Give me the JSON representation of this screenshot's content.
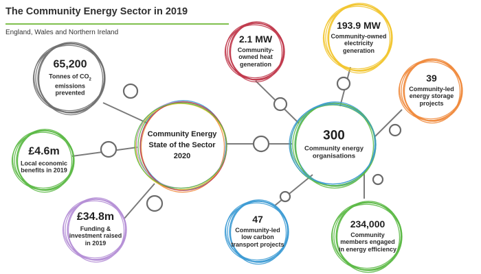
{
  "header": {
    "title": "The Community Energy Sector in 2019",
    "subtitle": "England, Wales and Northern Ireland"
  },
  "hub_left": {
    "line1": "Community Energy",
    "line2": "State of the Sector",
    "line3": "2020"
  },
  "hub_right": {
    "value": "300",
    "label": "Community energy organisations"
  },
  "stats": {
    "co2": {
      "value": "65,200",
      "label_prefix": "Tonnes of CO",
      "label_sub": "2",
      "label_rest": "emissions prevented"
    },
    "local": {
      "value": "£4.6m",
      "label": "Local economic benefits in 2019"
    },
    "funding": {
      "value": "£34.8m",
      "label": "Funding & investment raised in 2019"
    },
    "heat": {
      "value": "2.1 MW",
      "label": "Community-owned heat generation"
    },
    "electricity": {
      "value": "193.9 MW",
      "label": "Community-owned electricity generation"
    },
    "storage": {
      "value": "39",
      "label": "Community-led energy storage projects"
    },
    "transport": {
      "value": "47",
      "label": "Community-led low carbon transport projects"
    },
    "members": {
      "value": "234,000",
      "label": "Community members engaged in energy efficiency"
    }
  },
  "colors": {
    "co2": "#6f6f6f",
    "local": "#5cb946",
    "funding": "#b58fd6",
    "heat": "#c0394b",
    "electricity": "#f2c530",
    "storage": "#f08a3c",
    "transport": "#3d9bd4",
    "members": "#5cb946",
    "connector": "#7a7a7a",
    "rule": "#7fbf4d"
  }
}
